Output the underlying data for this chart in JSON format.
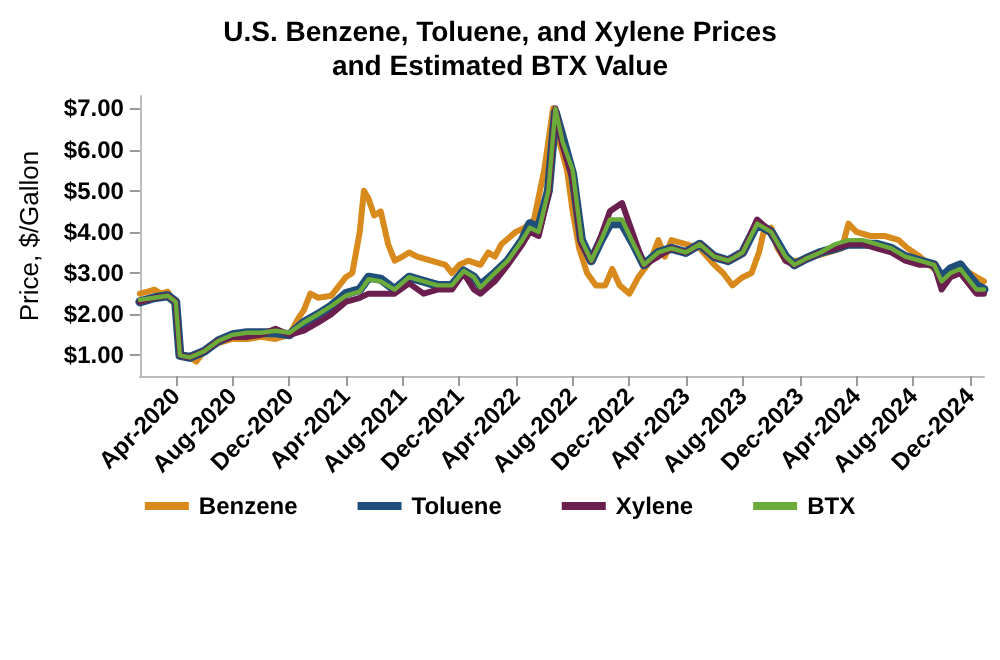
{
  "chart_data": {
    "type": "line",
    "title": "U.S. Benzene, Toluene, and Xylene Prices\nand Estimated BTX Value",
    "ylabel": "Price, $/Gallon",
    "xlim": [
      "2020-01-15",
      "2024-12-31"
    ],
    "xticks": [
      {
        "value": "2020-04-01",
        "label": "Apr-2020"
      },
      {
        "value": "2020-08-01",
        "label": "Aug-2020"
      },
      {
        "value": "2020-12-01",
        "label": "Dec-2020"
      },
      {
        "value": "2021-04-01",
        "label": "Apr-2021"
      },
      {
        "value": "2021-08-01",
        "label": "Aug-2021"
      },
      {
        "value": "2021-12-01",
        "label": "Dec-2021"
      },
      {
        "value": "2022-04-01",
        "label": "Apr-2022"
      },
      {
        "value": "2022-08-01",
        "label": "Aug-2022"
      },
      {
        "value": "2022-12-01",
        "label": "Dec-2022"
      },
      {
        "value": "2023-04-01",
        "label": "Apr-2023"
      },
      {
        "value": "2023-08-01",
        "label": "Aug-2023"
      },
      {
        "value": "2023-12-01",
        "label": "Dec-2023"
      },
      {
        "value": "2024-04-01",
        "label": "Apr-2024"
      },
      {
        "value": "2024-08-01",
        "label": "Aug-2024"
      },
      {
        "value": "2024-12-01",
        "label": "Dec-2024"
      }
    ],
    "ylim": [
      0.5,
      7.3
    ],
    "yticks": [
      {
        "value": 1,
        "label": "$1.00"
      },
      {
        "value": 2,
        "label": "$2.00"
      },
      {
        "value": 3,
        "label": "$3.00"
      },
      {
        "value": 4,
        "label": "$4.00"
      },
      {
        "value": 5,
        "label": "$5.00"
      },
      {
        "value": 6,
        "label": "$6.00"
      },
      {
        "value": 7,
        "label": "$7.00"
      }
    ],
    "grid": false,
    "legend": "bottom",
    "marker": "none",
    "line_style": "solid",
    "series": [
      {
        "name": "Benzene",
        "color": "#d98a1c",
        "x": [
          "2020-01-15",
          "2020-02-01",
          "2020-02-15",
          "2020-03-01",
          "2020-03-15",
          "2020-04-01",
          "2020-04-10",
          "2020-05-01",
          "2020-05-15",
          "2020-06-01",
          "2020-07-01",
          "2020-08-01",
          "2020-09-01",
          "2020-10-01",
          "2020-11-01",
          "2020-12-01",
          "2020-12-20",
          "2021-01-01",
          "2021-01-15",
          "2021-02-01",
          "2021-03-01",
          "2021-04-01",
          "2021-04-15",
          "2021-05-01",
          "2021-05-10",
          "2021-05-20",
          "2021-06-01",
          "2021-06-15",
          "2021-07-01",
          "2021-07-15",
          "2021-08-01",
          "2021-08-15",
          "2021-09-01",
          "2021-10-01",
          "2021-11-01",
          "2021-11-15",
          "2021-12-01",
          "2021-12-20",
          "2022-01-15",
          "2022-02-01",
          "2022-02-15",
          "2022-03-01",
          "2022-04-01",
          "2022-04-20",
          "2022-05-10",
          "2022-06-01",
          "2022-06-20",
          "2022-07-01",
          "2022-07-20",
          "2022-08-01",
          "2022-08-15",
          "2022-09-01",
          "2022-09-20",
          "2022-10-10",
          "2022-10-25",
          "2022-11-10",
          "2022-12-01",
          "2022-12-20",
          "2023-01-15",
          "2023-02-01",
          "2023-02-15",
          "2023-03-01",
          "2023-04-01",
          "2023-05-01",
          "2023-06-01",
          "2023-06-20",
          "2023-07-10",
          "2023-08-01",
          "2023-08-20",
          "2023-09-05",
          "2023-09-15",
          "2023-10-01",
          "2023-10-15",
          "2023-11-01",
          "2023-12-01",
          "2024-01-01",
          "2024-02-01",
          "2024-03-01",
          "2024-03-15",
          "2024-04-01",
          "2024-05-01",
          "2024-06-01",
          "2024-07-01",
          "2024-07-20",
          "2024-08-15",
          "2024-09-15",
          "2024-10-01",
          "2024-10-20",
          "2024-11-15",
          "2024-12-15",
          "2024-12-31"
        ],
        "values": [
          2.5,
          2.55,
          2.6,
          2.5,
          2.55,
          2.2,
          1.0,
          0.95,
          0.85,
          1.1,
          1.3,
          1.4,
          1.4,
          1.45,
          1.4,
          1.5,
          1.9,
          2.1,
          2.5,
          2.4,
          2.45,
          2.9,
          3.0,
          4.0,
          5.0,
          4.8,
          4.4,
          4.5,
          3.7,
          3.3,
          3.4,
          3.5,
          3.4,
          3.3,
          3.2,
          3.0,
          3.2,
          3.3,
          3.2,
          3.5,
          3.4,
          3.7,
          4.0,
          4.1,
          4.3,
          5.5,
          7.0,
          6.3,
          5.5,
          4.5,
          3.6,
          3.0,
          2.7,
          2.7,
          3.1,
          2.7,
          2.5,
          2.9,
          3.3,
          3.8,
          3.4,
          3.8,
          3.7,
          3.6,
          3.2,
          3.0,
          2.7,
          2.9,
          3.0,
          3.5,
          4.0,
          4.1,
          3.6,
          3.3,
          3.3,
          3.4,
          3.5,
          3.6,
          4.2,
          4.0,
          3.9,
          3.9,
          3.8,
          3.6,
          3.4,
          3.1,
          3.0,
          3.0,
          3.1,
          2.9,
          2.8
        ]
      },
      {
        "name": "Toluene",
        "color": "#1f4e79",
        "x": [
          "2020-01-15",
          "2020-02-15",
          "2020-03-15",
          "2020-04-01",
          "2020-04-10",
          "2020-05-01",
          "2020-06-01",
          "2020-07-01",
          "2020-08-01",
          "2020-09-01",
          "2020-10-01",
          "2020-11-01",
          "2020-12-01",
          "2021-01-01",
          "2021-02-01",
          "2021-03-01",
          "2021-04-01",
          "2021-05-01",
          "2021-05-20",
          "2021-06-15",
          "2021-07-15",
          "2021-08-15",
          "2021-09-15",
          "2021-10-15",
          "2021-11-15",
          "2021-12-10",
          "2022-01-01",
          "2022-01-15",
          "2022-02-15",
          "2022-03-15",
          "2022-04-15",
          "2022-05-01",
          "2022-05-20",
          "2022-06-10",
          "2022-06-25",
          "2022-07-10",
          "2022-08-01",
          "2022-08-20",
          "2022-09-10",
          "2022-10-01",
          "2022-10-20",
          "2022-11-15",
          "2022-12-10",
          "2023-01-01",
          "2023-02-01",
          "2023-03-01",
          "2023-04-01",
          "2023-05-01",
          "2023-06-01",
          "2023-07-01",
          "2023-08-01",
          "2023-09-01",
          "2023-10-01",
          "2023-11-01",
          "2023-11-20",
          "2023-12-15",
          "2024-01-15",
          "2024-02-15",
          "2024-03-15",
          "2024-04-15",
          "2024-05-15",
          "2024-06-15",
          "2024-07-15",
          "2024-08-15",
          "2024-09-15",
          "2024-10-01",
          "2024-10-20",
          "2024-11-10",
          "2024-12-01",
          "2024-12-15",
          "2024-12-31"
        ],
        "values": [
          2.3,
          2.4,
          2.45,
          2.3,
          1.0,
          0.95,
          1.1,
          1.35,
          1.5,
          1.55,
          1.55,
          1.55,
          1.5,
          1.8,
          2.0,
          2.2,
          2.5,
          2.6,
          2.9,
          2.85,
          2.6,
          2.9,
          2.8,
          2.7,
          2.7,
          3.05,
          2.9,
          2.7,
          3.0,
          3.3,
          3.8,
          4.2,
          4.1,
          5.0,
          6.9,
          6.3,
          5.4,
          3.8,
          3.3,
          3.8,
          4.2,
          4.2,
          3.7,
          3.2,
          3.5,
          3.6,
          3.5,
          3.7,
          3.4,
          3.3,
          3.5,
          4.2,
          4.0,
          3.4,
          3.2,
          3.35,
          3.5,
          3.6,
          3.7,
          3.7,
          3.7,
          3.6,
          3.4,
          3.3,
          3.2,
          2.9,
          3.1,
          3.2,
          2.9,
          2.7,
          2.6
        ]
      },
      {
        "name": "Xylene",
        "color": "#6b1f4f",
        "x": [
          "2020-01-15",
          "2020-02-15",
          "2020-03-15",
          "2020-04-01",
          "2020-04-10",
          "2020-05-01",
          "2020-06-01",
          "2020-07-01",
          "2020-08-01",
          "2020-09-01",
          "2020-10-01",
          "2020-11-01",
          "2020-12-01",
          "2021-01-01",
          "2021-02-01",
          "2021-03-01",
          "2021-04-01",
          "2021-05-01",
          "2021-05-20",
          "2021-06-15",
          "2021-07-15",
          "2021-08-15",
          "2021-09-15",
          "2021-10-15",
          "2021-11-15",
          "2021-12-10",
          "2022-01-01",
          "2022-01-15",
          "2022-02-15",
          "2022-03-15",
          "2022-04-15",
          "2022-05-01",
          "2022-05-20",
          "2022-06-10",
          "2022-06-25",
          "2022-07-10",
          "2022-08-01",
          "2022-08-20",
          "2022-09-10",
          "2022-10-01",
          "2022-10-20",
          "2022-11-15",
          "2022-12-10",
          "2023-01-01",
          "2023-02-01",
          "2023-03-01",
          "2023-04-01",
          "2023-05-01",
          "2023-06-01",
          "2023-07-01",
          "2023-08-01",
          "2023-09-01",
          "2023-10-01",
          "2023-11-01",
          "2023-11-20",
          "2023-12-15",
          "2024-01-15",
          "2024-02-15",
          "2024-03-15",
          "2024-04-15",
          "2024-05-15",
          "2024-06-15",
          "2024-07-15",
          "2024-08-15",
          "2024-09-15",
          "2024-10-01",
          "2024-10-20",
          "2024-11-10",
          "2024-12-01",
          "2024-12-15",
          "2024-12-31"
        ],
        "values": [
          2.3,
          2.4,
          2.45,
          2.3,
          1.0,
          0.95,
          1.1,
          1.35,
          1.45,
          1.45,
          1.5,
          1.65,
          1.5,
          1.6,
          1.8,
          2.0,
          2.3,
          2.4,
          2.5,
          2.5,
          2.5,
          2.75,
          2.5,
          2.6,
          2.6,
          3.0,
          2.6,
          2.5,
          2.8,
          3.2,
          3.7,
          4.0,
          3.9,
          4.9,
          7.0,
          6.1,
          5.3,
          3.7,
          3.3,
          3.9,
          4.5,
          4.7,
          3.9,
          3.2,
          3.4,
          3.6,
          3.5,
          3.7,
          3.4,
          3.3,
          3.5,
          4.3,
          4.0,
          3.3,
          3.2,
          3.35,
          3.5,
          3.6,
          3.7,
          3.7,
          3.6,
          3.5,
          3.3,
          3.2,
          3.2,
          2.6,
          2.9,
          3.0,
          2.7,
          2.5,
          2.5
        ]
      },
      {
        "name": "BTX",
        "color": "#6aab3a",
        "x": [
          "2020-01-15",
          "2020-02-15",
          "2020-03-15",
          "2020-04-01",
          "2020-04-10",
          "2020-05-01",
          "2020-06-01",
          "2020-07-01",
          "2020-08-01",
          "2020-09-01",
          "2020-10-01",
          "2020-11-01",
          "2020-12-01",
          "2021-01-01",
          "2021-02-01",
          "2021-03-01",
          "2021-04-01",
          "2021-05-01",
          "2021-05-20",
          "2021-06-15",
          "2021-07-15",
          "2021-08-15",
          "2021-09-15",
          "2021-10-15",
          "2021-11-15",
          "2021-12-10",
          "2022-01-01",
          "2022-01-15",
          "2022-02-15",
          "2022-03-15",
          "2022-04-15",
          "2022-05-01",
          "2022-05-20",
          "2022-06-10",
          "2022-06-25",
          "2022-07-10",
          "2022-08-01",
          "2022-08-20",
          "2022-09-10",
          "2022-10-01",
          "2022-10-20",
          "2022-11-15",
          "2022-12-10",
          "2023-01-01",
          "2023-02-01",
          "2023-03-01",
          "2023-04-01",
          "2023-05-01",
          "2023-06-01",
          "2023-07-01",
          "2023-08-01",
          "2023-09-01",
          "2023-10-01",
          "2023-11-01",
          "2023-11-20",
          "2023-12-15",
          "2024-01-15",
          "2024-02-15",
          "2024-03-15",
          "2024-04-15",
          "2024-05-15",
          "2024-06-15",
          "2024-07-15",
          "2024-08-15",
          "2024-09-15",
          "2024-10-01",
          "2024-10-20",
          "2024-11-10",
          "2024-12-01",
          "2024-12-15",
          "2024-12-31"
        ],
        "values": [
          2.35,
          2.4,
          2.45,
          2.3,
          1.0,
          0.95,
          1.1,
          1.35,
          1.5,
          1.55,
          1.55,
          1.6,
          1.55,
          1.8,
          2.0,
          2.2,
          2.45,
          2.55,
          2.85,
          2.8,
          2.6,
          2.9,
          2.8,
          2.7,
          2.7,
          3.05,
          2.9,
          2.65,
          3.0,
          3.3,
          3.8,
          4.1,
          4.0,
          5.0,
          7.0,
          6.2,
          5.5,
          3.8,
          3.3,
          3.8,
          4.3,
          4.3,
          3.7,
          3.2,
          3.5,
          3.6,
          3.5,
          3.7,
          3.4,
          3.3,
          3.5,
          4.2,
          4.0,
          3.4,
          3.2,
          3.35,
          3.5,
          3.7,
          3.8,
          3.8,
          3.7,
          3.6,
          3.4,
          3.3,
          3.2,
          2.8,
          3.0,
          3.1,
          2.8,
          2.6,
          2.6
        ]
      }
    ]
  }
}
